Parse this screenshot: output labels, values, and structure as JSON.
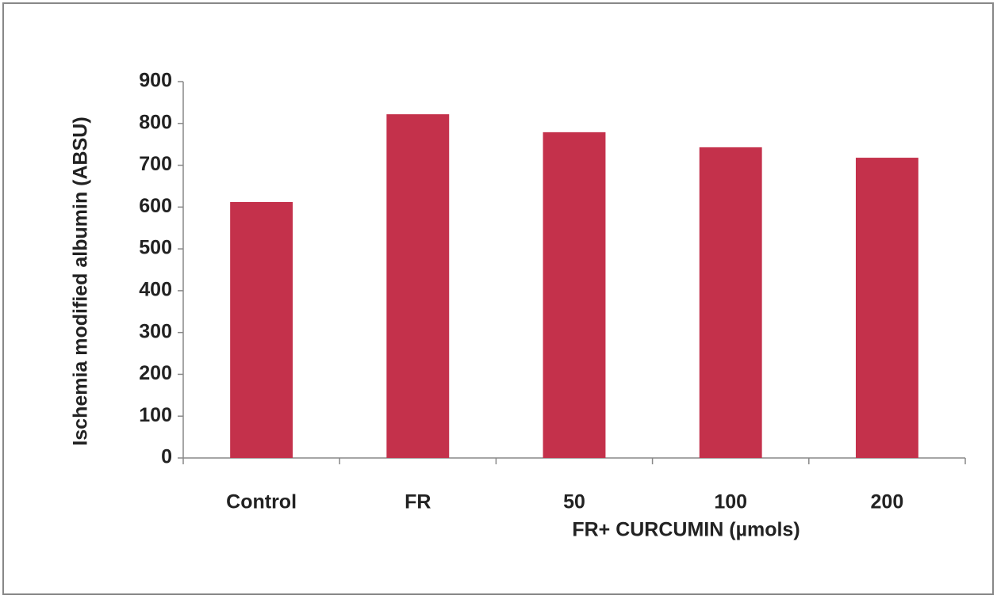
{
  "chart_data": {
    "type": "bar",
    "categories": [
      "Control",
      "FR",
      "50",
      "100",
      "200"
    ],
    "values": [
      612,
      822,
      779,
      743,
      718
    ],
    "color": "#c4314b",
    "ylabel": "Ischemia modified albumin (ABSU)",
    "xlabel": "FR+ CURCUMIN (µmols)",
    "ylim": [
      0,
      900
    ],
    "yticks": [
      0,
      100,
      200,
      300,
      400,
      500,
      600,
      700,
      800,
      900
    ],
    "grid": false
  }
}
